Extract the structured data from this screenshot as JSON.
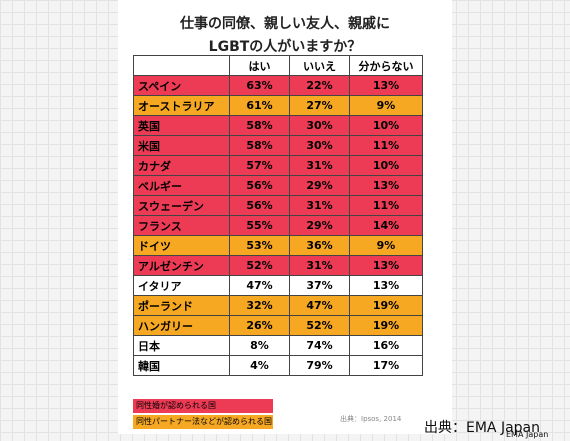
{
  "title": [
    "仕事の同僚、親しい友人、親戚に",
    "LGBTの人がいますか？"
  ],
  "table": {
    "header": [
      "はい",
      "いいえ",
      "分からない"
    ],
    "rows": [
      {
        "cells": [
          "スペイン",
          "63%",
          "22%",
          "13%"
        ],
        "color": "#ee3b55"
      },
      {
        "cells": [
          "オーストラリア",
          "61%",
          "27%",
          "9%"
        ],
        "color": "#f7a823"
      },
      {
        "cells": [
          "英国",
          "58%",
          "30%",
          "10%"
        ],
        "color": "#ee3b55"
      },
      {
        "cells": [
          "米国",
          "58%",
          "30%",
          "11%"
        ],
        "color": "#ee3b55"
      },
      {
        "cells": [
          "カナダ",
          "57%",
          "31%",
          "10%"
        ],
        "color": "#ee3b55"
      },
      {
        "cells": [
          "ベルギー",
          "56%",
          "29%",
          "13%"
        ],
        "color": "#ee3b55"
      },
      {
        "cells": [
          "スウェーデン",
          "56%",
          "31%",
          "11%"
        ],
        "color": "#ee3b55"
      },
      {
        "cells": [
          "フランス",
          "55%",
          "29%",
          "14%"
        ],
        "color": "#ee3b55"
      },
      {
        "cells": [
          "ドイツ",
          "53%",
          "36%",
          "9%"
        ],
        "color": "#f7a823"
      },
      {
        "cells": [
          "アルゼンチン",
          "52%",
          "31%",
          "13%"
        ],
        "color": "#ee3b55"
      },
      {
        "cells": [
          "イタリア",
          "47%",
          "37%",
          "13%"
        ],
        "color": "#ffffff"
      },
      {
        "cells": [
          "ポーランド",
          "32%",
          "47%",
          "19%"
        ],
        "color": "#f7a823"
      },
      {
        "cells": [
          "ハンガリー",
          "26%",
          "52%",
          "19%"
        ],
        "color": "#f7a823"
      },
      {
        "cells": [
          "日本",
          "8%",
          "74%",
          "16%"
        ],
        "color": "#ffffff"
      },
      {
        "cells": [
          "韓国",
          "4%",
          "79%",
          "17%"
        ],
        "color": "#ffffff"
      }
    ]
  },
  "legend": [
    {
      "label": "同性婚が認められる国",
      "color": "#ee3b55"
    },
    {
      "label": "同性パートナー法などが認められる国",
      "color": "#f7a823"
    }
  ],
  "source": "出典：Ipsos, 2014",
  "credit": "出典：EMA Japan",
  "watermark": "EMA Japan"
}
